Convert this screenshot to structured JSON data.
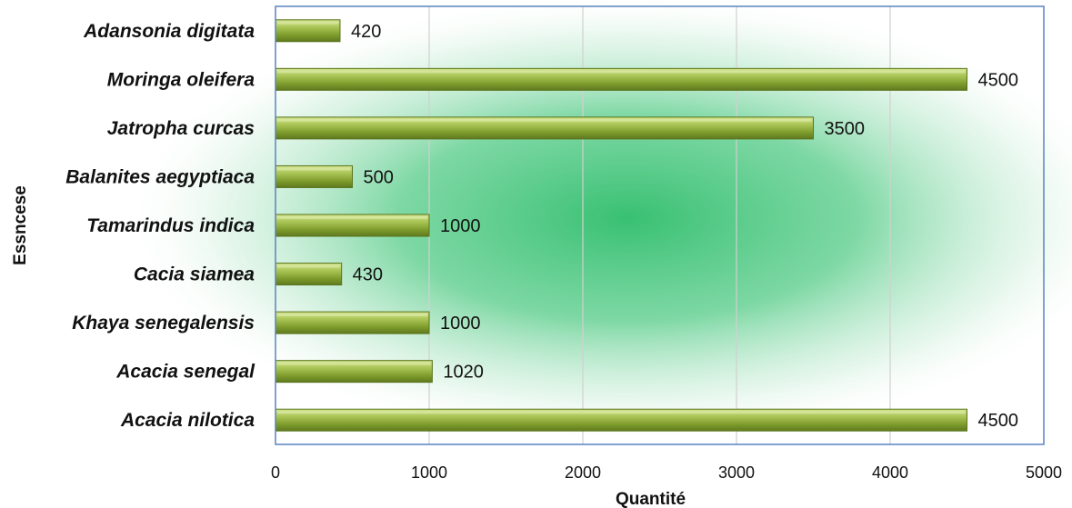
{
  "chart_data": {
    "type": "bar",
    "orientation": "horizontal",
    "categories": [
      "Adansonia digitata",
      "Moringa oleifera",
      "Jatropha curcas",
      "Balanites aegyptiaca",
      "Tamarindus indica",
      "Cacia siamea",
      "Khaya senegalensis",
      "Acacia senegal",
      "Acacia nilotica"
    ],
    "values": [
      420,
      4500,
      3500,
      500,
      1000,
      430,
      1000,
      1020,
      4500
    ],
    "data_labels": [
      "420",
      "4500",
      "3500",
      "500",
      "1000",
      "430",
      "1000",
      "1020",
      "4500"
    ],
    "xlabel": "Quantité",
    "ylabel": "Essncese",
    "xlim": [
      0,
      5000
    ],
    "x_ticks": [
      "0",
      "1000",
      "2000",
      "3000",
      "4000",
      "5000"
    ],
    "grid": "vertical",
    "legend": "none",
    "colors": {
      "bar": "#8aa838",
      "bar_dark": "#5f7a1f",
      "bar_light": "#c6dc7e",
      "glow": "#2ebd6b",
      "plot_border": "#5b83c0",
      "grid": "#d0d0d0"
    }
  }
}
